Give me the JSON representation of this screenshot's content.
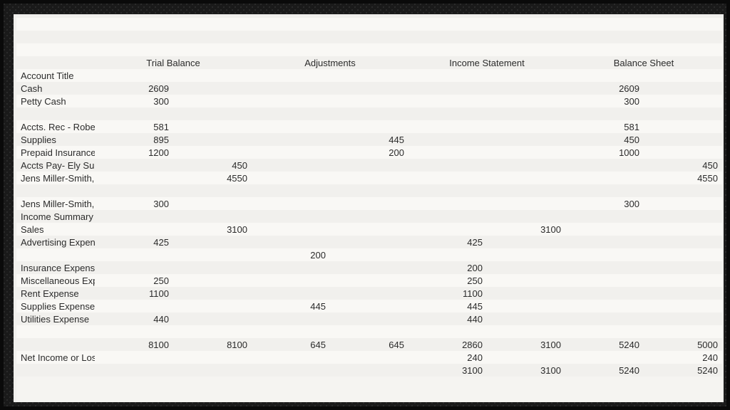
{
  "headers": {
    "col0": "",
    "trialBalance": "Trial Balance",
    "adjustments": "Adjustments",
    "incomeStatement": "Income Statement",
    "balanceSheet": "Balance Sheet"
  },
  "rows": [
    {
      "title": "Account Title",
      "tb_d": "",
      "tb_c": "",
      "adj_d": "",
      "adj_c": "",
      "is_d": "",
      "is_c": "",
      "bs_d": "",
      "bs_c": ""
    },
    {
      "title": "Cash",
      "tb_d": "2609",
      "tb_c": "",
      "adj_d": "",
      "adj_c": "",
      "is_d": "",
      "is_c": "",
      "bs_d": "2609",
      "bs_c": ""
    },
    {
      "title": "Petty Cash",
      "tb_d": "300",
      "tb_c": "",
      "adj_d": "",
      "adj_c": "",
      "is_d": "",
      "is_c": "",
      "bs_d": "300",
      "bs_c": ""
    },
    {
      "title": "",
      "tb_d": "",
      "tb_c": "",
      "adj_d": "",
      "adj_c": "",
      "is_d": "",
      "is_c": "",
      "bs_d": "",
      "bs_c": ""
    },
    {
      "title": "Accts. Rec - Robert Perpich",
      "tb_d": "581",
      "tb_c": "",
      "adj_d": "",
      "adj_c": "",
      "is_d": "",
      "is_c": "",
      "bs_d": "581",
      "bs_c": ""
    },
    {
      "title": "Supplies",
      "tb_d": "895",
      "tb_c": "",
      "adj_d": "",
      "adj_c": "445",
      "is_d": "",
      "is_c": "",
      "bs_d": "450",
      "bs_c": ""
    },
    {
      "title": "Prepaid Insurance",
      "tb_d": "1200",
      "tb_c": "",
      "adj_d": "",
      "adj_c": "200",
      "is_d": "",
      "is_c": "",
      "bs_d": "1000",
      "bs_c": ""
    },
    {
      "title": "Accts Pay- Ely Supplies",
      "tb_d": "",
      "tb_c": "450",
      "adj_d": "",
      "adj_c": "",
      "is_d": "",
      "is_c": "",
      "bs_d": "",
      "bs_c": "450"
    },
    {
      "title": "Jens Miller-Smith, Capital",
      "tb_d": "",
      "tb_c": "4550",
      "adj_d": "",
      "adj_c": "",
      "is_d": "",
      "is_c": "",
      "bs_d": "",
      "bs_c": "4550"
    },
    {
      "title": "",
      "tb_d": "",
      "tb_c": "",
      "adj_d": "",
      "adj_c": "",
      "is_d": "",
      "is_c": "",
      "bs_d": "",
      "bs_c": ""
    },
    {
      "title": "Jens Miller-Smith, Drawing",
      "tb_d": "300",
      "tb_c": "",
      "adj_d": "",
      "adj_c": "",
      "is_d": "",
      "is_c": "",
      "bs_d": "300",
      "bs_c": ""
    },
    {
      "title": "Income Summary",
      "tb_d": "",
      "tb_c": "",
      "adj_d": "",
      "adj_c": "",
      "is_d": "",
      "is_c": "",
      "bs_d": "",
      "bs_c": ""
    },
    {
      "title": "Sales",
      "tb_d": "",
      "tb_c": "3100",
      "adj_d": "",
      "adj_c": "",
      "is_d": "",
      "is_c": "3100",
      "bs_d": "",
      "bs_c": ""
    },
    {
      "title": "Advertising Expense",
      "tb_d": "425",
      "tb_c": "",
      "adj_d": "",
      "adj_c": "",
      "is_d": "425",
      "is_c": "",
      "bs_d": "",
      "bs_c": ""
    },
    {
      "title": "",
      "tb_d": "",
      "tb_c": "",
      "adj_d": "200",
      "adj_c": "",
      "is_d": "",
      "is_c": "",
      "bs_d": "",
      "bs_c": ""
    },
    {
      "title": "Insurance Expense",
      "tb_d": "",
      "tb_c": "",
      "adj_d": "",
      "adj_c": "",
      "is_d": "200",
      "is_c": "",
      "bs_d": "",
      "bs_c": ""
    },
    {
      "title": "Miscellaneous Expense",
      "tb_d": "250",
      "tb_c": "",
      "adj_d": "",
      "adj_c": "",
      "is_d": "250",
      "is_c": "",
      "bs_d": "",
      "bs_c": ""
    },
    {
      "title": "Rent Expense",
      "tb_d": "1100",
      "tb_c": "",
      "adj_d": "",
      "adj_c": "",
      "is_d": "1100",
      "is_c": "",
      "bs_d": "",
      "bs_c": ""
    },
    {
      "title": "Supplies Expense",
      "tb_d": "",
      "tb_c": "",
      "adj_d": "445",
      "adj_c": "",
      "is_d": "445",
      "is_c": "",
      "bs_d": "",
      "bs_c": ""
    },
    {
      "title": "Utilities Expense",
      "tb_d": "440",
      "tb_c": "",
      "adj_d": "",
      "adj_c": "",
      "is_d": "440",
      "is_c": "",
      "bs_d": "",
      "bs_c": ""
    },
    {
      "title": "",
      "tb_d": "",
      "tb_c": "",
      "adj_d": "",
      "adj_c": "",
      "is_d": "",
      "is_c": "",
      "bs_d": "",
      "bs_c": ""
    },
    {
      "title": "",
      "tb_d": "8100",
      "tb_c": "8100",
      "adj_d": "645",
      "adj_c": "645",
      "is_d": "2860",
      "is_c": "3100",
      "bs_d": "5240",
      "bs_c": "5000"
    },
    {
      "title": "Net Income or Loss",
      "tb_d": "",
      "tb_c": "",
      "adj_d": "",
      "adj_c": "",
      "is_d": "240",
      "is_c": "",
      "bs_d": "",
      "bs_c": "240"
    },
    {
      "title": "",
      "tb_d": "",
      "tb_c": "",
      "adj_d": "",
      "adj_c": "",
      "is_d": "3100",
      "is_c": "3100",
      "bs_d": "5240",
      "bs_c": "5240"
    }
  ]
}
